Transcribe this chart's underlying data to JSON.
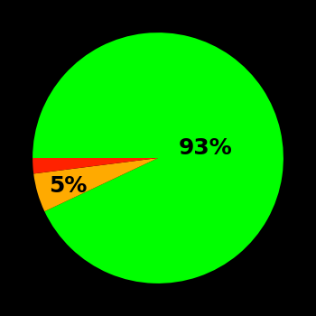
{
  "slices": [
    93,
    5,
    2
  ],
  "colors": [
    "#00ff00",
    "#ffaa00",
    "#ff2200"
  ],
  "labels": [
    "93%",
    "5%",
    ""
  ],
  "background_color": "#000000",
  "startangle": 180,
  "label_positions": {
    "green": [
      0.38,
      0.08
    ],
    "yellow": [
      -0.72,
      -0.22
    ]
  },
  "label_fontsize": 18,
  "label_fontweight": "bold",
  "counterclock": false
}
